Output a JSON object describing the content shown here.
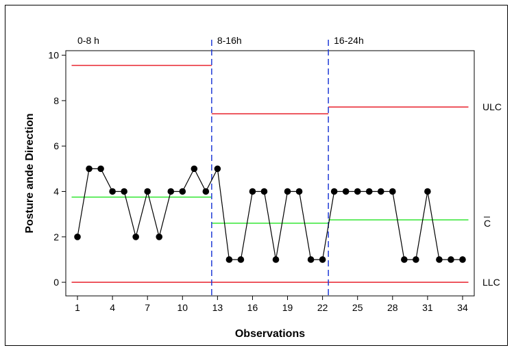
{
  "chart_data": {
    "type": "line",
    "title": "",
    "xlabel": "Observations",
    "ylabel": "Posture ande Direction",
    "xlim": [
      0,
      35
    ],
    "ylim": [
      -0.6,
      10.2
    ],
    "x_ticks": [
      1,
      4,
      7,
      10,
      13,
      16,
      19,
      22,
      25,
      28,
      31,
      34
    ],
    "y_ticks": [
      0,
      2,
      4,
      6,
      8,
      10
    ],
    "grid": false,
    "phases": [
      {
        "label": "0-8 h",
        "start": 0.5,
        "end": 12.5,
        "ucl": 9.55,
        "center": 3.75,
        "lcl": 0
      },
      {
        "label": "8-16h",
        "start": 12.5,
        "end": 22.5,
        "ucl": 7.42,
        "center": 2.6,
        "lcl": 0
      },
      {
        "label": "16-24h",
        "start": 22.5,
        "end": 34.5,
        "ucl": 7.72,
        "center": 2.75,
        "lcl": 0
      }
    ],
    "phase_boundaries": [
      12.5,
      22.5
    ],
    "right_labels": {
      "ucl": "ULC",
      "center": "C",
      "lcl": "LLC"
    },
    "series": [
      {
        "x": [
          1,
          2,
          3,
          4,
          5,
          6,
          7,
          8,
          9,
          10,
          11,
          12,
          13,
          14,
          15,
          16,
          17,
          18,
          19,
          20,
          21,
          22,
          23,
          24,
          25,
          26,
          27,
          28,
          29,
          30,
          31,
          32,
          33,
          34
        ],
        "values": [
          2,
          5,
          5,
          4,
          4,
          2,
          4,
          2,
          4,
          4,
          5,
          4,
          5,
          1,
          1,
          4,
          4,
          1,
          4,
          4,
          1,
          1,
          4,
          4,
          4,
          4,
          4,
          4,
          1,
          1,
          4,
          1,
          1,
          1
        ]
      }
    ],
    "colors": {
      "limit": "#e8212b",
      "center": "#33e633",
      "boundary": "#1f3ad6",
      "data": "#000000"
    }
  }
}
